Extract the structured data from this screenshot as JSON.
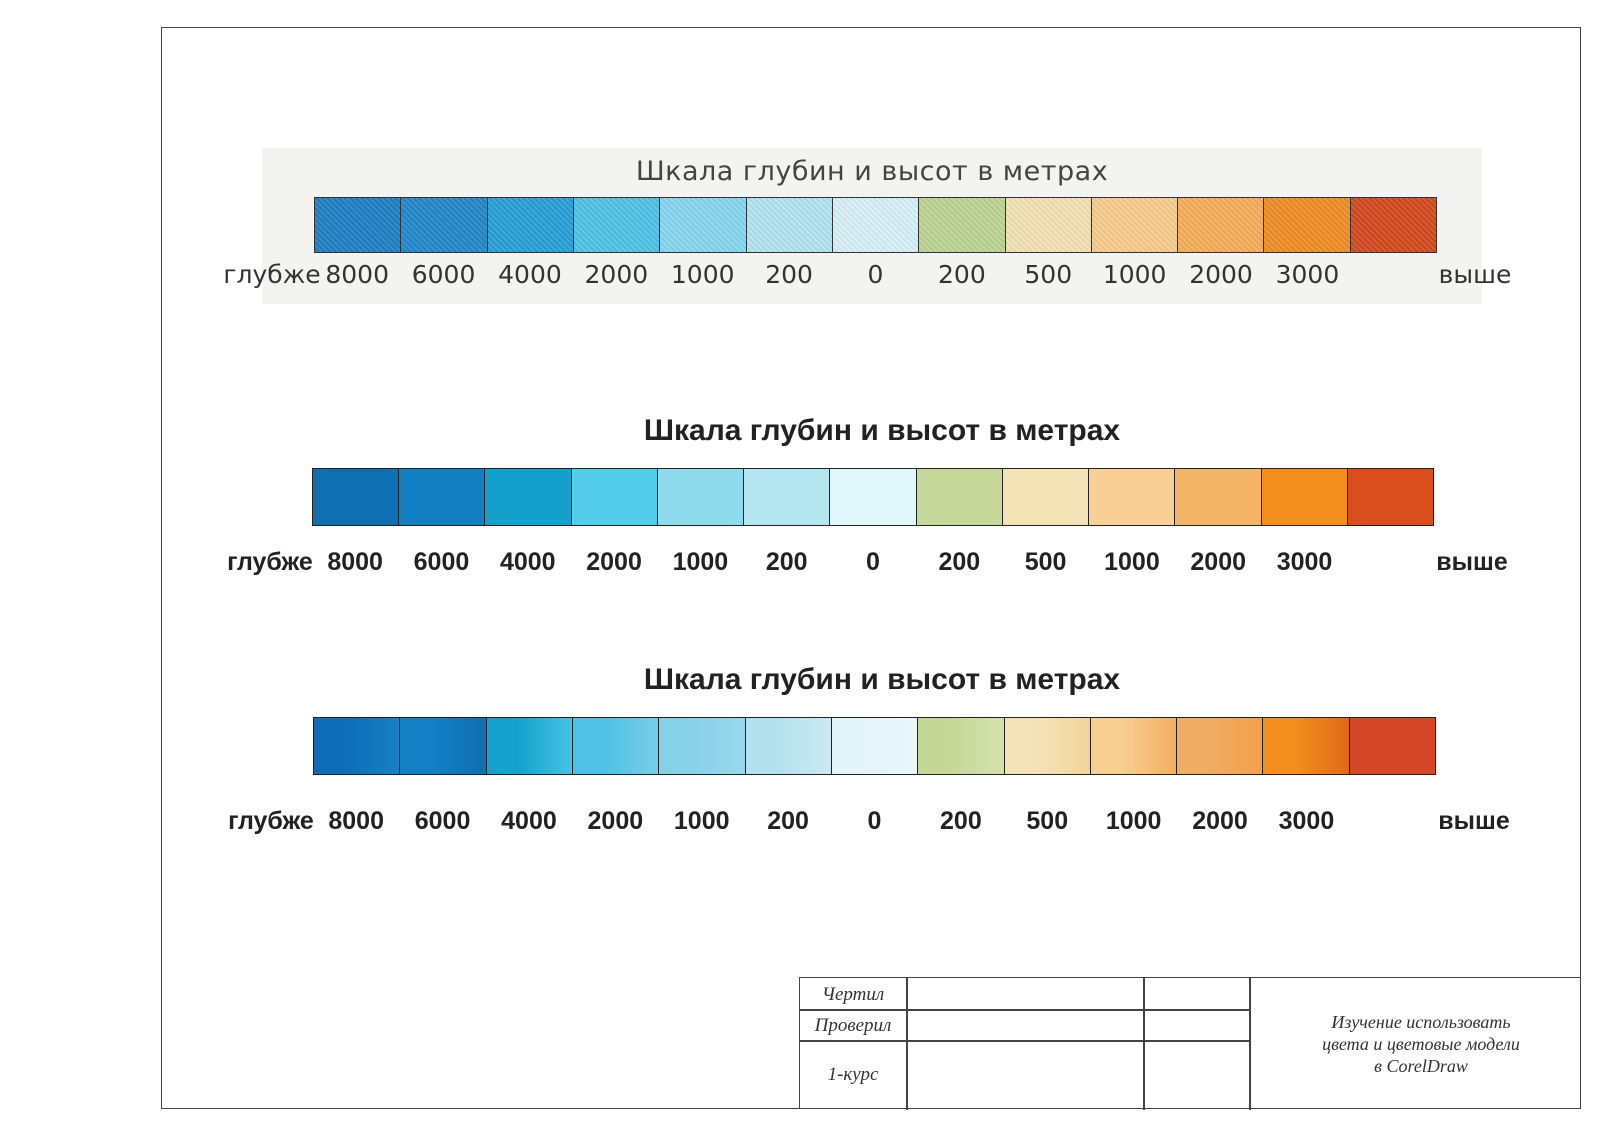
{
  "scales": [
    {
      "id": "scan",
      "title": "Шкала глубин и высот в метрах",
      "colors": [
        "#1f7fc4",
        "#2188c9",
        "#27a0d6",
        "#4fc2e6",
        "#86d6ee",
        "#b2e4f1",
        "#d6f0f6",
        "#bcd493",
        "#f1e1b6",
        "#f6cc8d",
        "#f3ae5b",
        "#ef8d26",
        "#d4491f"
      ],
      "labels": [
        "глубже",
        "8000",
        "6000",
        "4000",
        "2000",
        "1000",
        "200",
        "0",
        "200",
        "500",
        "1000",
        "2000",
        "3000",
        "выше"
      ]
    },
    {
      "id": "flat",
      "title": "Шкала глубин и высот в метрах",
      "colors": [
        "#0f6fb3",
        "#127fc2",
        "#15a0cb",
        "#52cce8",
        "#8fdbec",
        "#b6e6ef",
        "#dff6fa",
        "#c5d89a",
        "#f3e3b7",
        "#f8d097",
        "#f3b468",
        "#f48e1c",
        "#d84e1d"
      ],
      "labels": [
        "глубже",
        "8000",
        "6000",
        "4000",
        "2000",
        "1000",
        "200",
        "0",
        "200",
        "500",
        "1000",
        "2000",
        "3000",
        "выше"
      ]
    },
    {
      "id": "gradient",
      "title": "Шкала глубин и высот в метрах",
      "colors": [
        "#0d6db6",
        "#137fc5",
        "#14a1cc",
        "#4ec1e4",
        "#86d1e8",
        "#b3e1ee",
        "#e3f4f9",
        "#c4d797",
        "#f4e3b8",
        "#f8cf93",
        "#efad64",
        "#f48f1f",
        "#d44727"
      ],
      "gradient_ends": [
        "#1880c4",
        "#0f6fb0",
        "#47c2e6",
        "#78cde8",
        "#99d8ec",
        "#cbe9f1",
        "#e8f6fa",
        "#d3e2ac",
        "#f2d49a",
        "#f3ae60",
        "#f3a04a",
        "#e06a15",
        "#d44727"
      ],
      "labels": [
        "глубже",
        "8000",
        "6000",
        "4000",
        "2000",
        "1000",
        "200",
        "0",
        "200",
        "500",
        "1000",
        "2000",
        "3000",
        "выше"
      ]
    }
  ],
  "title_block": {
    "drawn_label": "Чертил",
    "checked_label": "Проверил",
    "course_label": "1-курс",
    "description_line1": "Изучение использовать",
    "description_line2": "цвета и цветовые модели",
    "description_line3": "в CorelDraw"
  }
}
